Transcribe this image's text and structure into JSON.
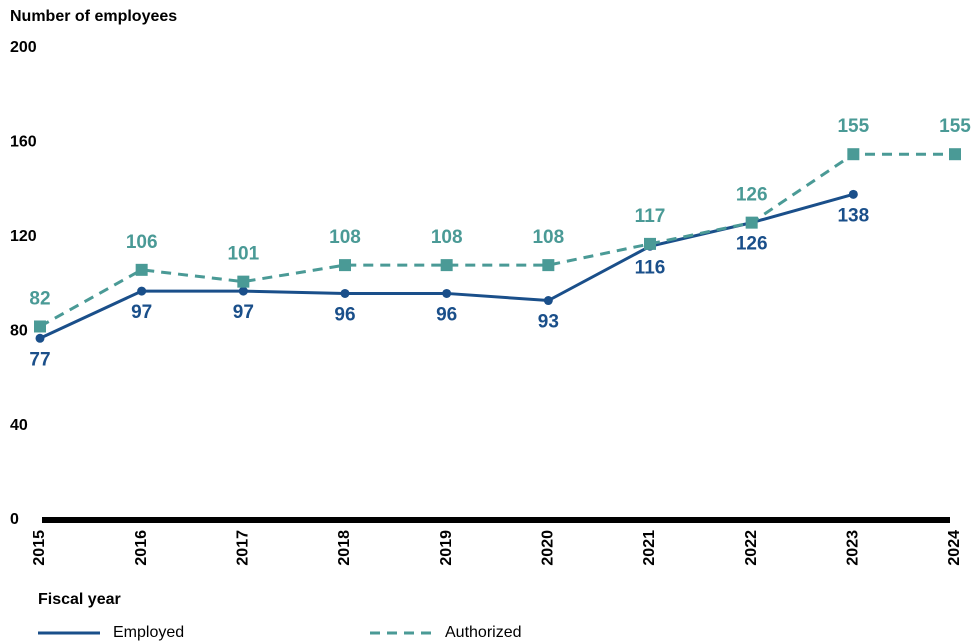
{
  "chart_data": {
    "type": "line",
    "y_axis_label": "Number of employees",
    "x_axis_label": "Fiscal year",
    "categories": [
      "2015",
      "2016",
      "2017",
      "2018",
      "2019",
      "2020",
      "2021",
      "2022",
      "2023",
      "2024"
    ],
    "series": [
      {
        "name": "Employed",
        "color": "#1a4f8a",
        "style": "solid",
        "marker": "circle",
        "label_position": "below",
        "values": [
          77,
          97,
          97,
          96,
          96,
          93,
          116,
          126,
          138,
          null
        ]
      },
      {
        "name": "Authorized",
        "color": "#4a9a96",
        "style": "dashed",
        "marker": "square",
        "label_position": "above",
        "values": [
          82,
          106,
          101,
          108,
          108,
          108,
          117,
          126,
          155,
          155
        ]
      }
    ],
    "ylim": [
      0,
      200
    ],
    "yticks": [
      0,
      40,
      80,
      120,
      160,
      200
    ],
    "grid": false
  }
}
